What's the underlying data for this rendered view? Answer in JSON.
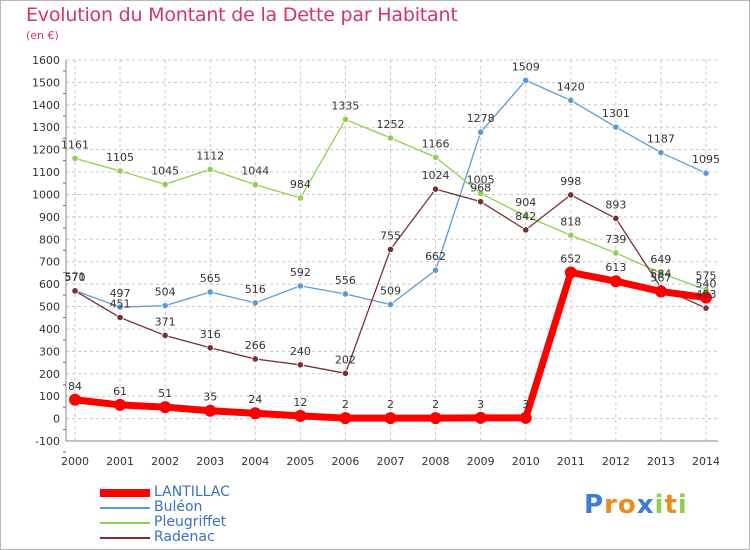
{
  "header": {
    "title": "Evolution du Montant de la Dette par Habitant",
    "unit": "(en €)"
  },
  "colors": {
    "title": "#d6336c",
    "grid": "#c8c8c8",
    "axis_text": "#333333",
    "legend_text": "#3b6fc8"
  },
  "chart_data": {
    "type": "line",
    "title": "Evolution du Montant de la Dette par Habitant",
    "ylabel": "(en €)",
    "xlabel": "",
    "x": [
      "2000",
      "2001",
      "2002",
      "2003",
      "2004",
      "2005",
      "2006",
      "2007",
      "2008",
      "2009",
      "2010",
      "2011",
      "2012",
      "2013",
      "2014"
    ],
    "ylim": [
      -100,
      1600
    ],
    "yticks": [
      "-100",
      "0",
      "100",
      "200",
      "300",
      "400",
      "500",
      "600",
      "700",
      "800",
      "900",
      "1000",
      "1100",
      "1200",
      "1300",
      "1400",
      "1500",
      "1600"
    ],
    "grid": true,
    "legend_position": "bottom-left",
    "series": [
      {
        "name": "LANTILLAC",
        "color": "#ff0000",
        "values": [
          84,
          61,
          51,
          35,
          24,
          12,
          2,
          2,
          2,
          3,
          3,
          652,
          613,
          567,
          540
        ],
        "labels": [
          "84",
          "61",
          "51",
          "35",
          "24",
          "12",
          "2",
          "2",
          "2",
          "3",
          "3",
          "652",
          "613",
          "567",
          "540"
        ]
      },
      {
        "name": "Buléon",
        "color": "#5b9bd5",
        "values": [
          571,
          497,
          504,
          565,
          516,
          592,
          556,
          509,
          662,
          1278,
          1509,
          1420,
          1301,
          1187,
          1095
        ],
        "labels": [
          "571",
          "497",
          "504",
          "565",
          "516",
          "592",
          "556",
          "509",
          "662",
          "1278",
          "1509",
          "1420",
          "1301",
          "1187",
          "1095"
        ]
      },
      {
        "name": "Pleugriffet",
        "color": "#8fd14f",
        "values": [
          1161,
          1105,
          1045,
          1112,
          1044,
          984,
          1335,
          1252,
          1166,
          1005,
          904,
          818,
          739,
          649,
          575
        ],
        "labels": [
          "1161",
          "1105",
          "1045",
          "1112",
          "1044",
          "984",
          "1335",
          "1252",
          "1166",
          "1005",
          "904",
          "818",
          "739",
          "649",
          "575"
        ]
      },
      {
        "name": "Radenac",
        "color": "#7a2f2f",
        "values": [
          570,
          451,
          371,
          316,
          266,
          240,
          202,
          755,
          1024,
          968,
          842,
          998,
          893,
          584,
          493
        ],
        "labels": [
          "570",
          "451",
          "371",
          "316",
          "266",
          "240",
          "202",
          "755",
          "1024",
          "968",
          "842",
          "998",
          "893",
          "584",
          "493"
        ]
      }
    ]
  },
  "logo": {
    "letters": [
      "P",
      "r",
      "o",
      "x",
      "i",
      "t",
      "i"
    ],
    "colors": [
      "#3b7dd8",
      "#f08c1a",
      "#f08c1a",
      "#3b7dd8",
      "#8fd14f",
      "#f08c1a",
      "#8fd14f"
    ]
  }
}
